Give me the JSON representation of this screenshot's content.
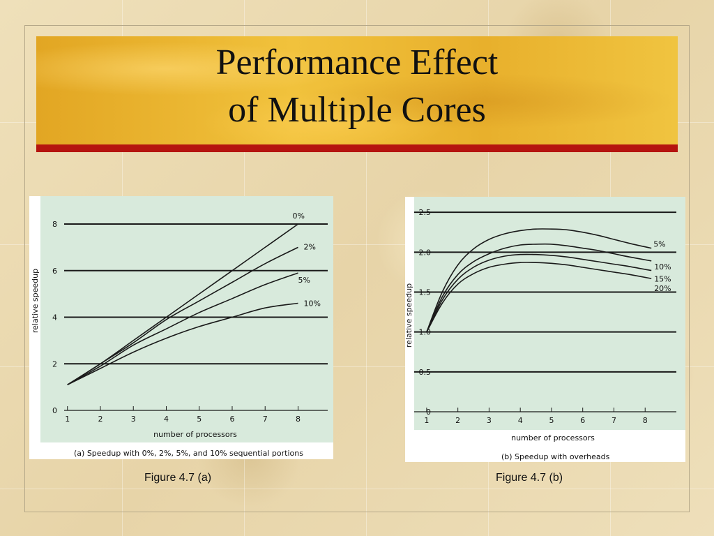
{
  "slide": {
    "title_line1": "Performance Effect",
    "title_line2": "of Multiple Cores",
    "caption_a": "Figure 4.7 (a)",
    "caption_b": "Figure 4.7 (b)"
  },
  "colors": {
    "plot_bg": "#d8eadc",
    "title_band": "#e6b128",
    "red_rule": "#b5140f",
    "line": "#1a1a1a"
  },
  "chart_data": [
    {
      "type": "line",
      "caption": "(a) Speedup with 0%, 2%, 5%, and 10% sequential portions",
      "xlabel": "number of processors",
      "ylabel": "relative speedup",
      "xlim": [
        0.9,
        8.9
      ],
      "ylim": [
        0,
        8.9
      ],
      "x_ticks": [
        1,
        2,
        3,
        4,
        5,
        6,
        7,
        8
      ],
      "y_ticks": [
        0,
        2,
        4,
        6,
        8
      ],
      "y_tick_labels": [
        "0",
        "2",
        "4",
        "6",
        "8"
      ],
      "gridlines": [
        2,
        4,
        6,
        8
      ],
      "series": [
        {
          "name": "0%",
          "x": [
            1,
            2,
            3,
            4,
            5,
            6,
            7,
            8
          ],
          "y": [
            1.1,
            2.0,
            3.0,
            4.0,
            5.0,
            6.0,
            7.0,
            8.0
          ]
        },
        {
          "name": "2%",
          "x": [
            1,
            2,
            3,
            4,
            5,
            6,
            7,
            8
          ],
          "y": [
            1.1,
            2.0,
            2.9,
            3.9,
            4.7,
            5.5,
            6.3,
            7.0
          ]
        },
        {
          "name": "5%",
          "x": [
            1,
            2,
            3,
            4,
            5,
            6,
            7,
            8
          ],
          "y": [
            1.1,
            1.9,
            2.8,
            3.5,
            4.2,
            4.8,
            5.4,
            5.9
          ]
        },
        {
          "name": "10%",
          "x": [
            1,
            2,
            3,
            4,
            5,
            6,
            7,
            8
          ],
          "y": [
            1.1,
            1.8,
            2.5,
            3.1,
            3.6,
            4.0,
            4.4,
            4.6
          ]
        }
      ]
    },
    {
      "type": "line",
      "caption": "(b) Speedup with overheads",
      "xlabel": "number of processors",
      "ylabel": "relative speedup",
      "xlim": [
        0.6,
        9.0
      ],
      "ylim": [
        0,
        2.58
      ],
      "x_ticks": [
        1,
        2,
        3,
        4,
        5,
        6,
        7,
        8
      ],
      "y_ticks": [
        0,
        0.5,
        1.0,
        1.5,
        2.0,
        2.5
      ],
      "y_tick_labels": [
        "0",
        "0.5",
        "1.0",
        "1.5",
        "2.0",
        "2.5"
      ],
      "gridlines": [
        0.5,
        1.0,
        1.5,
        2.0,
        2.5
      ],
      "series": [
        {
          "name": "5%",
          "x": [
            1,
            1.5,
            2,
            2.5,
            3,
            3.5,
            4,
            4.5,
            5,
            5.5,
            6,
            6.5,
            7,
            7.5,
            8.2
          ],
          "y": [
            1.0,
            1.5,
            1.84,
            2.04,
            2.16,
            2.23,
            2.27,
            2.29,
            2.29,
            2.28,
            2.25,
            2.21,
            2.16,
            2.11,
            2.05
          ]
        },
        {
          "name": "10%",
          "x": [
            1,
            1.5,
            2,
            2.5,
            3,
            3.5,
            4,
            4.5,
            5,
            5.5,
            6,
            6.5,
            7,
            7.5,
            8.2
          ],
          "y": [
            1.0,
            1.44,
            1.72,
            1.88,
            1.98,
            2.05,
            2.09,
            2.1,
            2.1,
            2.08,
            2.05,
            2.02,
            1.98,
            1.94,
            1.89
          ]
        },
        {
          "name": "15%",
          "x": [
            1,
            1.5,
            2,
            2.5,
            3,
            3.5,
            4,
            4.5,
            5,
            5.5,
            6,
            6.5,
            7,
            7.5,
            8.2
          ],
          "y": [
            1.0,
            1.4,
            1.66,
            1.81,
            1.9,
            1.95,
            1.97,
            1.97,
            1.96,
            1.94,
            1.91,
            1.88,
            1.85,
            1.82,
            1.77
          ]
        },
        {
          "name": "20%",
          "x": [
            1,
            1.5,
            2,
            2.5,
            3,
            3.5,
            4,
            4.5,
            5,
            5.5,
            6,
            6.5,
            7,
            7.5,
            8.2
          ],
          "y": [
            1.0,
            1.36,
            1.6,
            1.73,
            1.81,
            1.85,
            1.87,
            1.87,
            1.86,
            1.84,
            1.81,
            1.78,
            1.75,
            1.72,
            1.67
          ]
        }
      ]
    }
  ]
}
